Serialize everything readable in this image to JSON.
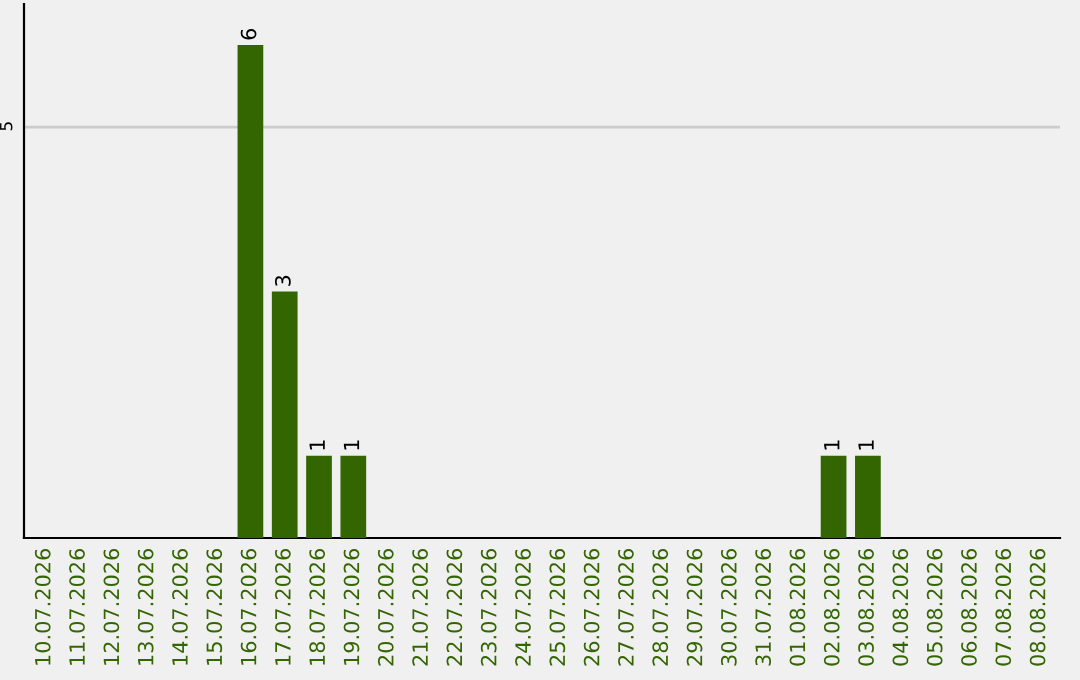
{
  "chart_data": {
    "type": "bar",
    "categories": [
      "10.07.2026",
      "11.07.2026",
      "12.07.2026",
      "13.07.2026",
      "14.07.2026",
      "15.07.2026",
      "16.07.2026",
      "17.07.2026",
      "18.07.2026",
      "19.07.2026",
      "20.07.2026",
      "21.07.2026",
      "22.07.2026",
      "23.07.2026",
      "24.07.2026",
      "25.07.2026",
      "26.07.2026",
      "27.07.2026",
      "28.07.2026",
      "29.07.2026",
      "30.07.2026",
      "31.07.2026",
      "01.08.2026",
      "02.08.2026",
      "03.08.2026",
      "04.08.2026",
      "05.08.2026",
      "06.08.2026",
      "07.08.2026",
      "08.08.2026"
    ],
    "values": [
      0,
      0,
      0,
      0,
      0,
      0,
      6,
      3,
      1,
      1,
      0,
      0,
      0,
      0,
      0,
      0,
      0,
      0,
      0,
      0,
      0,
      0,
      0,
      1,
      1,
      0,
      0,
      0,
      0,
      0
    ],
    "color": "#336600",
    "value_labels": [
      null,
      null,
      null,
      null,
      null,
      null,
      "6",
      "3",
      "1",
      "1",
      null,
      null,
      null,
      null,
      null,
      null,
      null,
      null,
      null,
      null,
      null,
      null,
      null,
      "1",
      "1",
      null,
      null,
      null,
      null,
      null
    ],
    "ylim": [
      0,
      6.5
    ],
    "yticks": [
      5
    ],
    "grid": "y"
  }
}
